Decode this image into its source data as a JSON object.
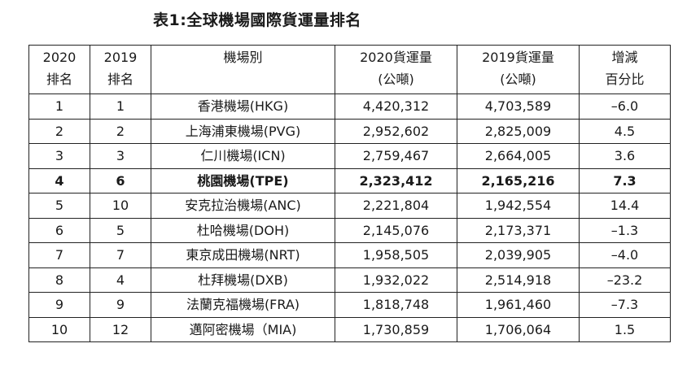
{
  "title": "表1:全球機場國際貨運量排名",
  "headers": [
    {
      "line1": "2020",
      "line2": "排名"
    },
    {
      "line1": "2019",
      "line2": "排名"
    },
    {
      "line1": "機場別",
      "line2": ""
    },
    {
      "line1": "2020貨運量",
      "line2": "(公噸)"
    },
    {
      "line1": "2019貨運量",
      "line2": "(公噸)"
    },
    {
      "line1": "增減",
      "line2": "百分比"
    }
  ],
  "rows": [
    {
      "rank2020": "1",
      "rank2019": "1",
      "airport": "香港機場(HKG)",
      "cargo2020": "4,420,312",
      "cargo2019": "4,703,589",
      "change": "–6.0"
    },
    {
      "rank2020": "2",
      "rank2019": "2",
      "airport": "上海浦東機場(PVG)",
      "cargo2020": "2,952,602",
      "cargo2019": "2,825,009",
      "change": "4.5"
    },
    {
      "rank2020": "3",
      "rank2019": "3",
      "airport": "仁川機場(ICN)",
      "cargo2020": "2,759,467",
      "cargo2019": "2,664,005",
      "change": "3.6"
    },
    {
      "rank2020": "4",
      "rank2019": "6",
      "airport": "桃園機場(TPE)",
      "cargo2020": "2,323,412",
      "cargo2019": "2,165,216",
      "change": "7.3"
    },
    {
      "rank2020": "5",
      "rank2019": "10",
      "airport": "安克拉治機場(ANC)",
      "cargo2020": "2,221,804",
      "cargo2019": "1,942,554",
      "change": "14.4"
    },
    {
      "rank2020": "6",
      "rank2019": "5",
      "airport": "杜哈機場(DOH)",
      "cargo2020": "2,145,076",
      "cargo2019": "2,173,371",
      "change": "–1.3"
    },
    {
      "rank2020": "7",
      "rank2019": "7",
      "airport": "東京成田機場(NRT)",
      "cargo2020": "1,958,505",
      "cargo2019": "2,039,905",
      "change": "–4.0"
    },
    {
      "rank2020": "8",
      "rank2019": "4",
      "airport": "杜拜機場(DXB)",
      "cargo2020": "1,932,022",
      "cargo2019": "2,514,918",
      "change": "–23.2"
    },
    {
      "rank2020": "9",
      "rank2019": "9",
      "airport": "法蘭克福機場(FRA)",
      "cargo2020": "1,818,748",
      "cargo2019": "1,961,460",
      "change": "–7.3"
    },
    {
      "rank2020": "10",
      "rank2019": "12",
      "airport": "邁阿密機場（MIA)",
      "cargo2020": "1,730,859",
      "cargo2019": "1,706,064",
      "change": "1.5"
    }
  ]
}
